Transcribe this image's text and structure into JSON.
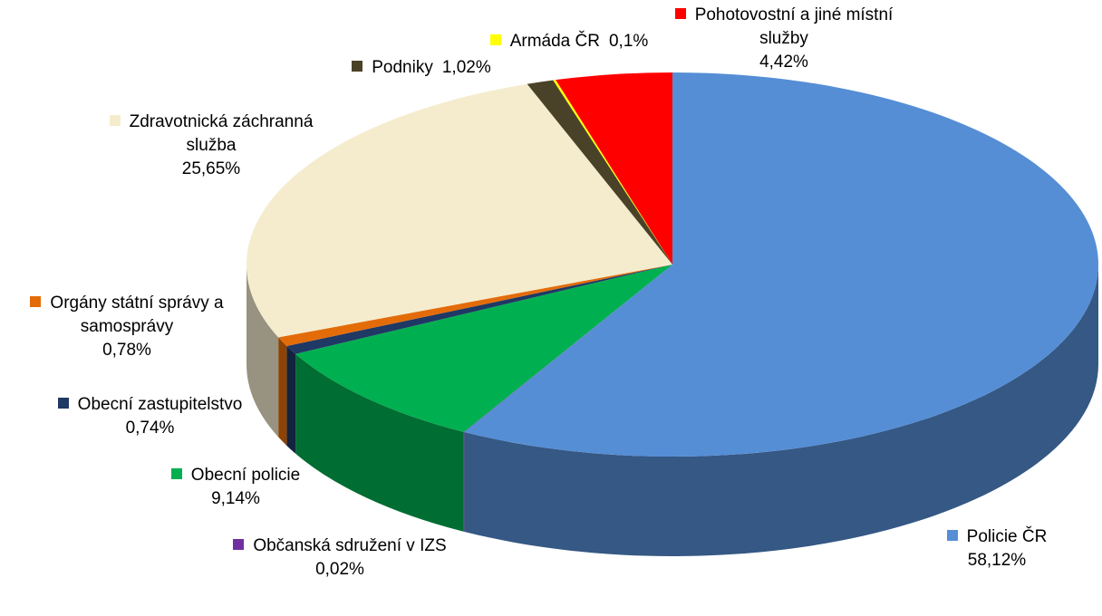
{
  "chart_data": {
    "type": "pie3d",
    "categories": [
      "Policie ČR",
      "Občanská sdružení v IZS",
      "Obecní policie",
      "Obecní zastupitelstvo",
      "Orgány státní správy a samosprávy",
      "Zdravotnická záchranná služba",
      "Podniky",
      "Armáda ČR",
      "Pohotovostní a jiné místní služby"
    ],
    "values": [
      58.12,
      0.02,
      9.14,
      0.74,
      0.78,
      25.65,
      1.02,
      0.1,
      4.42
    ],
    "value_labels": [
      "58,12%",
      "0,02%",
      "9,14%",
      "0,74%",
      "0,78%",
      "25,65%",
      "1,02%",
      "0,1%",
      "4,42%"
    ],
    "colors": [
      "#558ed5",
      "#7030a0",
      "#00b050",
      "#1f3864",
      "#e36c09",
      "#f5ecce",
      "#4a4228",
      "#ffff00",
      "#ff0000"
    ]
  }
}
